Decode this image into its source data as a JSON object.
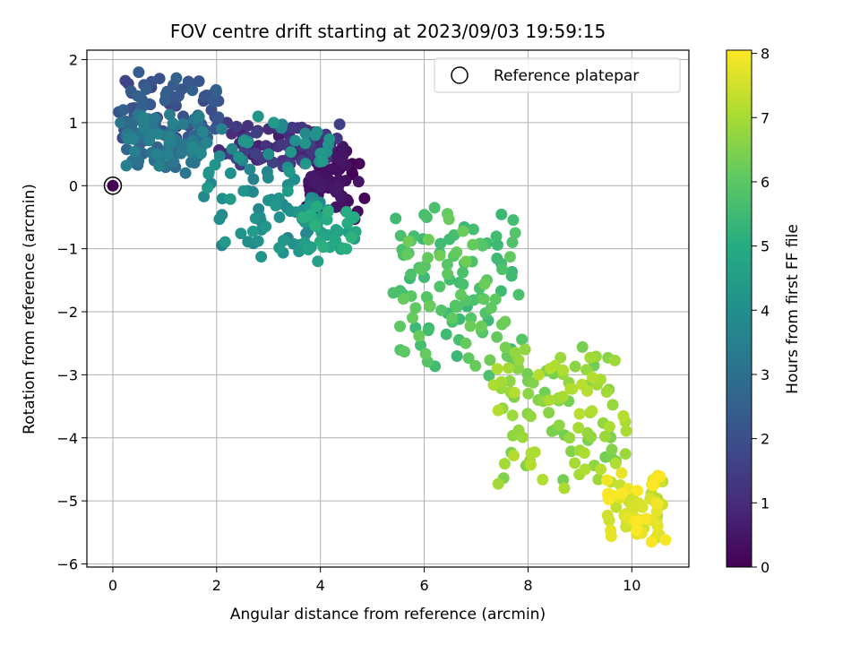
{
  "chart_data": {
    "type": "scatter",
    "title": "FOV centre drift starting at 2023/09/03 19:59:15",
    "xlabel": "Angular distance from reference (arcmin)",
    "ylabel": "Rotation from reference (arcmin)",
    "xlim": [
      -0.5,
      11.1
    ],
    "ylim": [
      -6.05,
      2.15
    ],
    "xticks": [
      0,
      2,
      4,
      6,
      8,
      10
    ],
    "yticks": [
      2,
      1,
      0,
      -1,
      -2,
      -3,
      -4,
      -5,
      -6
    ],
    "grid": true,
    "legend": {
      "entries": [
        "Reference platepar"
      ],
      "placement": "top-right"
    },
    "colorbar": {
      "label": "Hours from first FF file",
      "colormap": "viridis",
      "range": [
        0,
        8.05
      ],
      "ticks": [
        0,
        1,
        2,
        3,
        4,
        5,
        6,
        7,
        8
      ]
    },
    "reference_point": {
      "x": 0,
      "y": 0,
      "hours": 0
    },
    "clusters": [
      {
        "hours_range": [
          0.0,
          0.6
        ],
        "count": 70,
        "x_range": [
          3.6,
          4.8
        ],
        "y_range": [
          -0.5,
          0.7
        ]
      },
      {
        "hours_range": [
          0.6,
          1.6
        ],
        "count": 80,
        "x_range": [
          2.0,
          4.4
        ],
        "y_range": [
          0.3,
          1.0
        ]
      },
      {
        "hours_range": [
          1.6,
          2.6
        ],
        "count": 70,
        "x_range": [
          0.1,
          2.2
        ],
        "y_range": [
          0.6,
          1.8
        ]
      },
      {
        "hours_range": [
          2.6,
          3.6
        ],
        "count": 70,
        "x_range": [
          0.1,
          1.8
        ],
        "y_range": [
          0.2,
          1.2
        ]
      },
      {
        "hours_range": [
          3.6,
          4.4
        ],
        "count": 90,
        "x_range": [
          1.4,
          4.4
        ],
        "y_range": [
          -1.2,
          1.1
        ]
      },
      {
        "hours_range": [
          4.4,
          5.2
        ],
        "count": 30,
        "x_range": [
          3.6,
          4.8
        ],
        "y_range": [
          -1.1,
          -0.3
        ]
      },
      {
        "hours_range": [
          5.4,
          6.3
        ],
        "count": 110,
        "x_range": [
          5.2,
          8.0
        ],
        "y_range": [
          -3.1,
          -0.3
        ]
      },
      {
        "hours_range": [
          6.3,
          7.2
        ],
        "count": 100,
        "x_range": [
          7.2,
          10.0
        ],
        "y_range": [
          -4.8,
          -2.5
        ]
      },
      {
        "hours_range": [
          7.2,
          8.05
        ],
        "count": 60,
        "x_range": [
          9.4,
          10.7
        ],
        "y_range": [
          -5.7,
          -4.5
        ]
      }
    ],
    "points": [
      [
        4.62,
        0.18,
        0.05
      ],
      [
        4.85,
        -0.2,
        0.12
      ],
      [
        4.66,
        -0.53,
        0.2
      ],
      [
        4.5,
        0.55,
        0.3
      ],
      [
        4.2,
        0.7,
        0.45
      ],
      [
        3.95,
        0.4,
        0.55
      ],
      [
        4.3,
        -0.1,
        0.25
      ],
      [
        4.75,
        0.35,
        0.15
      ],
      [
        4.1,
        0.25,
        0.35
      ],
      [
        3.8,
        0.65,
        0.7
      ],
      [
        3.4,
        0.8,
        0.9
      ],
      [
        3.0,
        0.9,
        1.05
      ],
      [
        2.6,
        0.95,
        1.2
      ],
      [
        2.2,
        1.0,
        1.4
      ],
      [
        3.7,
        0.35,
        0.8
      ],
      [
        1.2,
        1.3,
        2.0
      ],
      [
        0.6,
        1.6,
        2.2
      ],
      [
        0.35,
        1.5,
        2.3
      ],
      [
        0.5,
        1.8,
        2.4
      ],
      [
        0.2,
        1.2,
        2.5
      ],
      [
        0.9,
        1.7,
        2.1
      ],
      [
        1.5,
        1.0,
        2.05
      ],
      [
        1.9,
        1.2,
        1.9
      ],
      [
        0.25,
        0.8,
        2.8
      ],
      [
        0.8,
        0.4,
        3.0
      ],
      [
        1.4,
        0.2,
        3.2
      ],
      [
        1.0,
        0.8,
        2.9
      ],
      [
        0.15,
        1.0,
        3.1
      ],
      [
        1.7,
        0.6,
        3.4
      ],
      [
        0.55,
        1.1,
        3.3
      ],
      [
        2.1,
        0.9,
        3.5
      ],
      [
        2.7,
        -0.1,
        3.8
      ],
      [
        3.0,
        0.5,
        3.9
      ],
      [
        3.5,
        0.1,
        4.0
      ],
      [
        3.2,
        -0.2,
        4.1
      ],
      [
        2.5,
        0.4,
        3.7
      ],
      [
        3.9,
        -0.6,
        4.3
      ],
      [
        3.7,
        -0.9,
        4.5
      ],
      [
        3.95,
        -1.2,
        4.6
      ],
      [
        4.3,
        -0.7,
        4.7
      ],
      [
        4.65,
        -0.5,
        5.0
      ],
      [
        4.5,
        -1.0,
        5.1
      ],
      [
        2.8,
        1.1,
        4.2
      ],
      [
        3.1,
        1.0,
        4.4
      ],
      [
        3.9,
        0.8,
        3.95
      ],
      [
        5.45,
        -0.52,
        5.5
      ],
      [
        5.8,
        -0.8,
        5.6
      ],
      [
        6.05,
        -0.5,
        5.65
      ],
      [
        6.2,
        -0.35,
        5.7
      ],
      [
        5.6,
        -1.1,
        5.75
      ],
      [
        5.9,
        -1.3,
        5.8
      ],
      [
        6.3,
        -1.6,
        5.85
      ],
      [
        6.6,
        -1.9,
        5.9
      ],
      [
        6.9,
        -2.1,
        5.95
      ],
      [
        7.1,
        -2.3,
        6.0
      ],
      [
        6.45,
        -1.4,
        6.05
      ],
      [
        7.15,
        -1.8,
        6.1
      ],
      [
        7.4,
        -2.4,
        6.15
      ],
      [
        7.6,
        -2.7,
        6.2
      ],
      [
        7.8,
        -2.9,
        6.25
      ],
      [
        7.5,
        -2.2,
        6.25
      ],
      [
        6.8,
        -2.5,
        6.15
      ],
      [
        8.0,
        -3.1,
        6.4
      ],
      [
        8.2,
        -3.4,
        6.5
      ],
      [
        8.4,
        -3.6,
        6.6
      ],
      [
        8.6,
        -3.8,
        6.7
      ],
      [
        8.8,
        -4.0,
        6.8
      ],
      [
        9.0,
        -4.2,
        6.9
      ],
      [
        9.2,
        -3.6,
        6.95
      ],
      [
        8.9,
        -4.4,
        7.0
      ],
      [
        8.7,
        -4.8,
        7.05
      ],
      [
        9.1,
        -4.5,
        7.1
      ],
      [
        9.4,
        -4.5,
        7.2
      ],
      [
        9.6,
        -4.7,
        7.3
      ],
      [
        9.8,
        -4.9,
        7.4
      ],
      [
        10.0,
        -5.0,
        7.5
      ],
      [
        10.2,
        -5.1,
        7.6
      ],
      [
        10.35,
        -5.3,
        7.7
      ],
      [
        10.5,
        -5.4,
        7.8
      ],
      [
        10.65,
        -5.62,
        7.95
      ],
      [
        10.38,
        -5.65,
        8.0
      ],
      [
        10.5,
        -5.05,
        7.9
      ],
      [
        9.7,
        -5.1,
        7.35
      ],
      [
        10.1,
        -5.3,
        7.65
      ],
      [
        9.9,
        -5.2,
        7.55
      ]
    ]
  }
}
